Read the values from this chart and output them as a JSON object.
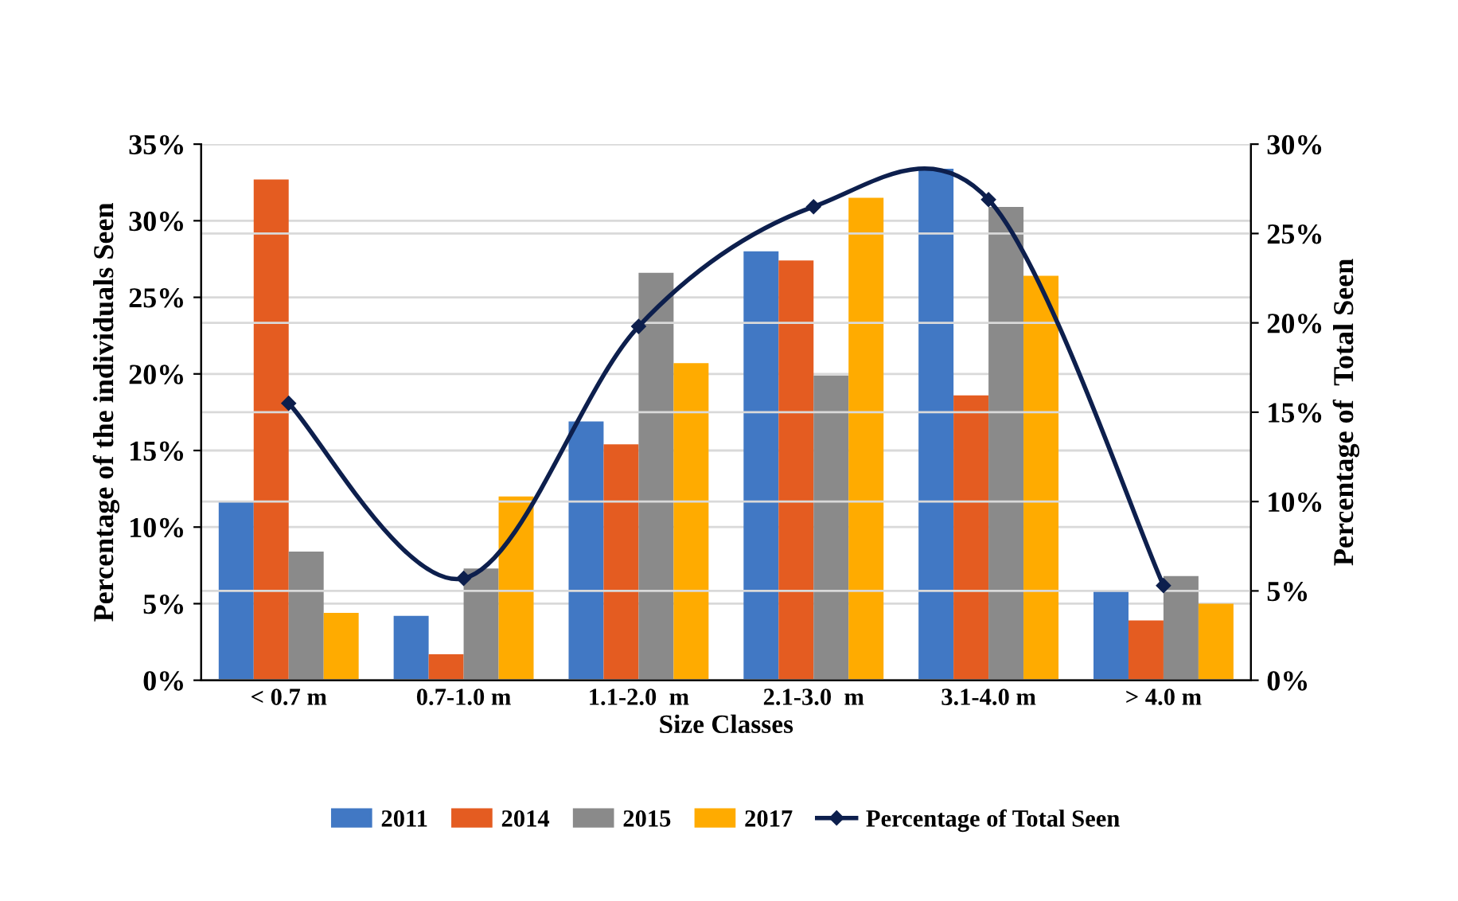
{
  "chart_data": {
    "type": "bar",
    "xlabel": "Size Classes",
    "ylabel": "Percentage of the individuals Seen",
    "y2label": "Percentage of  Total Seen",
    "categories": [
      "< 0.7 m",
      "0.7-1.0 m",
      "1.1-2.0  m",
      "2.1-3.0  m",
      "3.1-4.0 m",
      "> 4.0 m"
    ],
    "series": [
      {
        "name": "2011",
        "color": "#4178c4",
        "values": [
          11.7,
          4.2,
          16.9,
          28.0,
          33.4,
          5.8
        ]
      },
      {
        "name": "2014",
        "color": "#e45c21",
        "values": [
          32.7,
          1.7,
          15.4,
          27.4,
          18.6,
          3.9
        ]
      },
      {
        "name": "2015",
        "color": "#8a8a8a",
        "values": [
          8.4,
          7.3,
          26.6,
          19.9,
          30.9,
          6.8
        ]
      },
      {
        "name": "2017",
        "color": "#ffab00",
        "values": [
          4.4,
          12.0,
          20.7,
          31.5,
          26.4,
          5.0
        ]
      },
      {
        "name": "Percentage of Total Seen",
        "type": "line",
        "axis": "y2",
        "color": "#0d1f4d",
        "marker": "diamond",
        "values": [
          15.5,
          5.7,
          19.8,
          26.5,
          26.9,
          5.3
        ]
      }
    ],
    "ylim": [
      0,
      35
    ],
    "yticks": [
      {
        "value": 0,
        "label": "0%"
      },
      {
        "value": 5,
        "label": "5%"
      },
      {
        "value": 10,
        "label": "10%"
      },
      {
        "value": 15,
        "label": "15%"
      },
      {
        "value": 20,
        "label": "20%"
      },
      {
        "value": 25,
        "label": "25%"
      },
      {
        "value": 30,
        "label": "30%"
      },
      {
        "value": 35,
        "label": "35%"
      }
    ],
    "y2lim": [
      0,
      30
    ],
    "y2ticks": [
      {
        "value": 0,
        "label": "0%"
      },
      {
        "value": 5,
        "label": "5%"
      },
      {
        "value": 10,
        "label": "10%"
      },
      {
        "value": 15,
        "label": "15%"
      },
      {
        "value": 20,
        "label": "20%"
      },
      {
        "value": 25,
        "label": "25%"
      },
      {
        "value": 30,
        "label": "30%"
      }
    ],
    "grid": "y",
    "legend": "bottom"
  }
}
